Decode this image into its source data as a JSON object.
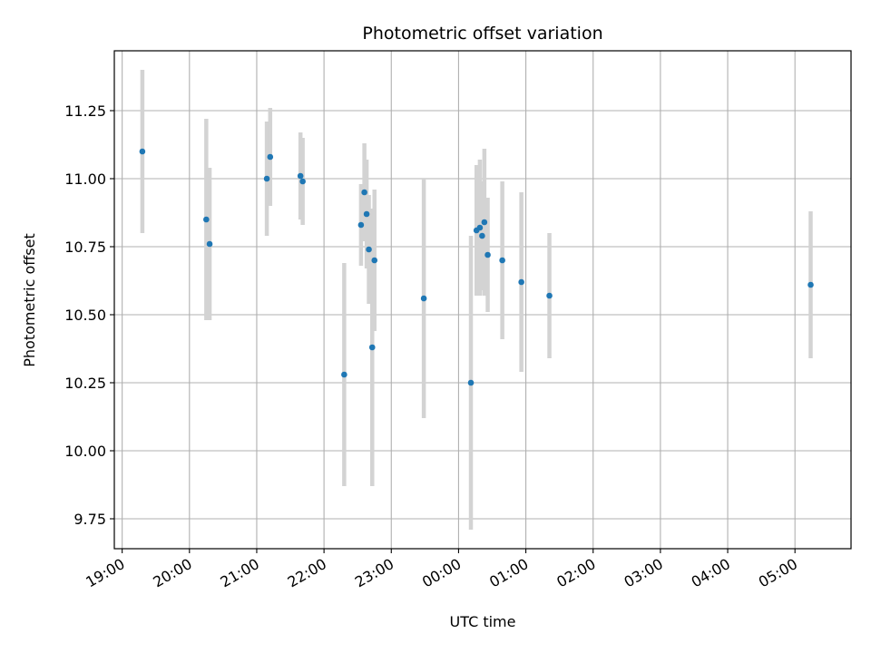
{
  "chart_data": {
    "type": "scatter",
    "title": "Photometric offset variation",
    "xlabel": "UTC time",
    "ylabel": "Photometric offset",
    "x_ticks": [
      "19:00",
      "20:00",
      "21:00",
      "22:00",
      "23:00",
      "00:00",
      "01:00",
      "02:00",
      "03:00",
      "04:00",
      "05:00"
    ],
    "y_ticks": [
      "9.75",
      "10.00",
      "10.25",
      "10.50",
      "10.75",
      "11.00",
      "11.25"
    ],
    "xlim": [
      "18:53",
      "05:50"
    ],
    "ylim": [
      9.64,
      11.47
    ],
    "grid": true,
    "colors": {
      "point": "#1f77b4",
      "errorbar": "#d3d3d3",
      "grid": "#b0b0b0"
    },
    "points": [
      {
        "x": "19:18",
        "y": 11.1,
        "err": 0.3
      },
      {
        "x": "20:15",
        "y": 10.85,
        "err": 0.37
      },
      {
        "x": "20:18",
        "y": 10.76,
        "err": 0.28
      },
      {
        "x": "21:09",
        "y": 11.0,
        "err": 0.21
      },
      {
        "x": "21:12",
        "y": 11.08,
        "err": 0.18
      },
      {
        "x": "21:39",
        "y": 11.01,
        "err": 0.16
      },
      {
        "x": "21:41",
        "y": 10.99,
        "err": 0.16
      },
      {
        "x": "22:18",
        "y": 10.28,
        "err": 0.41
      },
      {
        "x": "22:33",
        "y": 10.83,
        "err": 0.15
      },
      {
        "x": "22:36",
        "y": 10.95,
        "err": 0.18
      },
      {
        "x": "22:38",
        "y": 10.87,
        "err": 0.2
      },
      {
        "x": "22:40",
        "y": 10.74,
        "err": 0.2
      },
      {
        "x": "22:43",
        "y": 10.38,
        "err": 0.51
      },
      {
        "x": "22:45",
        "y": 10.7,
        "err": 0.26
      },
      {
        "x": "23:29",
        "y": 10.56,
        "err": 0.44
      },
      {
        "x": "00:11",
        "y": 10.25,
        "err": 0.54
      },
      {
        "x": "00:16",
        "y": 10.81,
        "err": 0.24
      },
      {
        "x": "00:19",
        "y": 10.82,
        "err": 0.25
      },
      {
        "x": "00:21",
        "y": 10.79,
        "err": 0.2
      },
      {
        "x": "00:23",
        "y": 10.84,
        "err": 0.27
      },
      {
        "x": "00:26",
        "y": 10.72,
        "err": 0.21
      },
      {
        "x": "00:39",
        "y": 10.7,
        "err": 0.29
      },
      {
        "x": "00:56",
        "y": 10.62,
        "err": 0.33
      },
      {
        "x": "01:21",
        "y": 10.57,
        "err": 0.23
      },
      {
        "x": "05:14",
        "y": 10.61,
        "err": 0.27
      }
    ]
  }
}
